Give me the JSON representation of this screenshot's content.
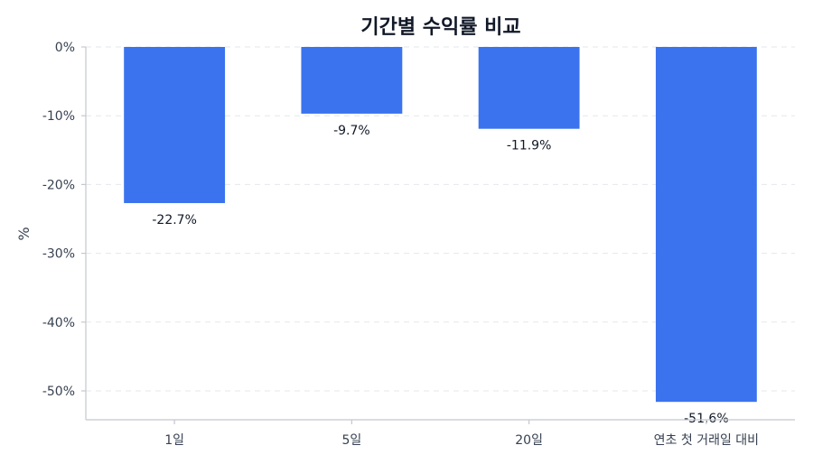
{
  "chart_data": {
    "type": "bar",
    "title": "기간별 수익률 비교",
    "xlabel": "",
    "ylabel": "%",
    "categories": [
      "1일",
      "5일",
      "20일",
      "연초 첫 거래일 대비"
    ],
    "values": [
      -22.7,
      -9.7,
      -11.9,
      -51.6
    ],
    "value_labels": [
      "-22.7%",
      "-9.7%",
      "-11.9%",
      "-51.6%"
    ],
    "ylim": [
      -54.2,
      0
    ],
    "yticks": [
      0,
      -10,
      -20,
      -30,
      -40,
      -50
    ],
    "ytick_labels": [
      "0%",
      "-10%",
      "-20%",
      "-30%",
      "-40%",
      "-50%"
    ],
    "grid": true,
    "bar_color": "#3b73ee"
  }
}
